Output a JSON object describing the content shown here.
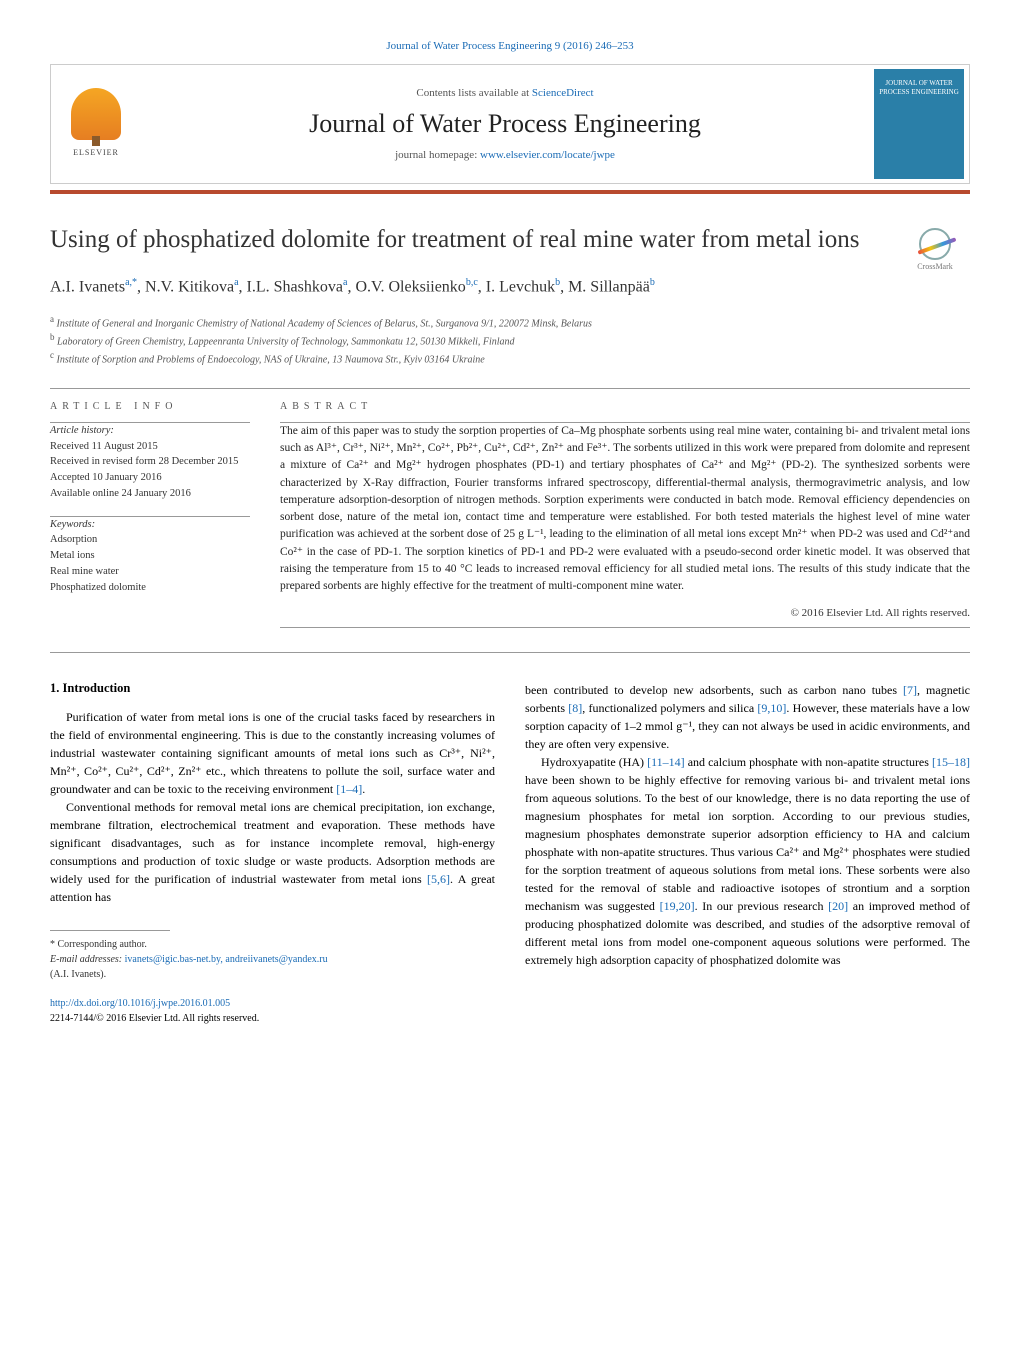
{
  "header": {
    "citation": "Journal of Water Process Engineering 9 (2016) 246–253",
    "contents_prefix": "Contents lists available at ",
    "contents_link": "ScienceDirect",
    "journal_name": "Journal of Water Process Engineering",
    "homepage_prefix": "journal homepage: ",
    "homepage_url": "www.elsevier.com/locate/jwpe",
    "elsevier_label": "ELSEVIER",
    "cover_text": "JOURNAL OF WATER PROCESS ENGINEERING",
    "crossmark": "CrossMark"
  },
  "title": "Using of phosphatized dolomite for treatment of real mine water from metal ions",
  "authors_html": "A.I. Ivanets<sup>a,*</sup>, N.V. Kitikova<sup>a</sup>, I.L. Shashkova<sup>a</sup>, O.V. Oleksiienko<sup>b,c</sup>, I. Levchuk<sup>b</sup>, M. Sillanpää<sup>b</sup>",
  "affiliations": [
    {
      "key": "a",
      "text": "Institute of General and Inorganic Chemistry of National Academy of Sciences of Belarus, St., Surganova 9/1, 220072 Minsk, Belarus"
    },
    {
      "key": "b",
      "text": "Laboratory of Green Chemistry, Lappeenranta University of Technology, Sammonkatu 12, 50130 Mikkeli, Finland"
    },
    {
      "key": "c",
      "text": "Institute of Sorption and Problems of Endoecology, NAS of Ukraine, 13 Naumova Str., Kyiv 03164 Ukraine"
    }
  ],
  "article_info": {
    "label": "ARTICLE INFO",
    "history_heading": "Article history:",
    "history": [
      "Received 11 August 2015",
      "Received in revised form 28 December 2015",
      "Accepted 10 January 2016",
      "Available online 24 January 2016"
    ],
    "keywords_heading": "Keywords:",
    "keywords": [
      "Adsorption",
      "Metal ions",
      "Real mine water",
      "Phosphatized dolomite"
    ]
  },
  "abstract": {
    "label": "ABSTRACT",
    "text": "The aim of this paper was to study the sorption properties of Ca–Mg phosphate sorbents using real mine water, containing bi- and trivalent metal ions such as Al³⁺, Cr³⁺, Ni²⁺, Mn²⁺, Co²⁺, Pb²⁺, Cu²⁺, Cd²⁺, Zn²⁺ and Fe³⁺. The sorbents utilized in this work were prepared from dolomite and represent a mixture of Ca²⁺ and Mg²⁺ hydrogen phosphates (PD-1) and tertiary phosphates of Ca²⁺ and Mg²⁺ (PD-2). The synthesized sorbents were characterized by X-Ray diffraction, Fourier transforms infrared spectroscopy, differential-thermal analysis, thermogravimetric analysis, and low temperature adsorption-desorption of nitrogen methods. Sorption experiments were conducted in batch mode. Removal efficiency dependencies on sorbent dose, nature of the metal ion, contact time and temperature were established. For both tested materials the highest level of mine water purification was achieved at the sorbent dose of 25 g L⁻¹, leading to the elimination of all metal ions except Mn²⁺ when PD-2 was used and Cd²⁺and Co²⁺ in the case of PD-1. The sorption kinetics of PD-1 and PD-2 were evaluated with a pseudo-second order kinetic model. It was observed that raising the temperature from 15 to 40 °C leads to increased removal efficiency for all studied metal ions. The results of this study indicate that the prepared sorbents are highly effective for the treatment of multi-component mine water.",
    "copyright": "© 2016 Elsevier Ltd. All rights reserved."
  },
  "body": {
    "heading": "1. Introduction",
    "left_paragraphs": [
      "Purification of water from metal ions is one of the crucial tasks faced by researchers in the field of environmental engineering. This is due to the constantly increasing volumes of industrial wastewater containing significant amounts of metal ions such as Cr³⁺, Ni²⁺, Mn²⁺, Co²⁺, Cu²⁺, Cd²⁺, Zn²⁺ etc., which threatens to pollute the soil, surface water and groundwater and can be toxic to the receiving environment [1–4].",
      "Conventional methods for removal metal ions are chemical precipitation, ion exchange, membrane filtration, electrochemical treatment and evaporation. These methods have significant disadvantages, such as for instance incomplete removal, high-energy consumptions and production of toxic sludge or waste products. Adsorption methods are widely used for the purification of industrial wastewater from metal ions [5,6]. A great attention has"
    ],
    "right_paragraphs": [
      "been contributed to develop new adsorbents, such as carbon nano tubes [7], magnetic sorbents [8], functionalized polymers and silica [9,10]. However, these materials have a low sorption capacity of 1–2 mmol g⁻¹, they can not always be used in acidic environments, and they are often very expensive.",
      "Hydroxyapatite (HA) [11–14] and calcium phosphate with non-apatite structures [15–18] have been shown to be highly effective for removing various bi- and trivalent metal ions from aqueous solutions. To the best of our knowledge, there is no data reporting the use of magnesium phosphates for metal ion sorption. According to our previous studies, magnesium phosphates demonstrate superior adsorption efficiency to HA and calcium phosphate with non-apatite structures. Thus various Ca²⁺ and Mg²⁺ phosphates were studied for the sorption treatment of aqueous solutions from metal ions. These sorbents were also tested for the removal of stable and radioactive isotopes of strontium and a sorption mechanism was suggested [19,20]. In our previous research [20] an improved method of producing phosphatized dolomite was described, and studies of the adsorptive removal of different metal ions from model one-component aqueous solutions were performed. The extremely high adsorption capacity of phosphatized dolomite was"
    ]
  },
  "footnotes": {
    "corresponding": "* Corresponding author.",
    "email_label": "E-mail addresses: ",
    "emails": "ivanets@igic.bas-net.by, andreiivanets@yandex.ru",
    "email_owner": "(A.I. Ivanets)."
  },
  "doi": {
    "url": "http://dx.doi.org/10.1016/j.jwpe.2016.01.005",
    "line2": "2214-7144/© 2016 Elsevier Ltd. All rights reserved."
  },
  "refs": {
    "r1_4": "[1–4]",
    "r5_6": "[5,6]",
    "r7": "[7]",
    "r8": "[8]",
    "r9_10": "[9,10]",
    "r11_14": "[11–14]",
    "r15_18": "[15–18]",
    "r19_20": "[19,20]",
    "r20": "[20]"
  },
  "style": {
    "colors": {
      "link": "#1a6bb5",
      "red_bar": "#b84a2e",
      "cover_bg": "#2a7fa8",
      "border": "#cccccc",
      "text": "#000000",
      "muted": "#555555"
    },
    "fontsize": {
      "journal_name": 26,
      "article_title": 25,
      "authors": 16,
      "body": 12,
      "abstract": 11.5,
      "affiliations": 10,
      "section_label": 10,
      "footnotes": 10
    }
  }
}
